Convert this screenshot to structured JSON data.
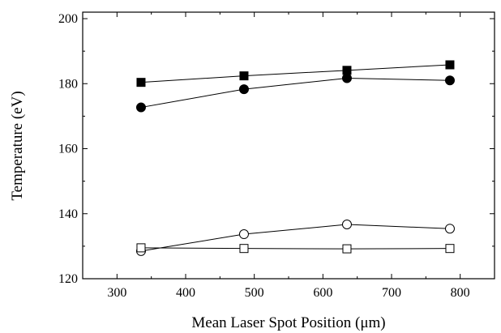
{
  "chart_data": {
    "type": "line",
    "title": "",
    "xlabel": "Mean Laser Spot Position (μm)",
    "ylabel": "Temperature (eV)",
    "xlim": [
      250,
      850
    ],
    "ylim": [
      120,
      202
    ],
    "x_ticks": [
      300,
      400,
      500,
      600,
      700,
      800
    ],
    "y_ticks": [
      120,
      140,
      160,
      180,
      200
    ],
    "grid": false,
    "legend": "none",
    "x": [
      335,
      485,
      635,
      785
    ],
    "series": [
      {
        "marker": "square",
        "fill": "filled",
        "values": [
          180.4,
          182.4,
          184.1,
          185.8
        ]
      },
      {
        "marker": "circle",
        "fill": "filled",
        "values": [
          172.7,
          178.3,
          181.7,
          181.0
        ]
      },
      {
        "marker": "circle",
        "fill": "open",
        "values": [
          128.5,
          133.7,
          136.7,
          135.4
        ]
      },
      {
        "marker": "square",
        "fill": "open",
        "values": [
          129.5,
          129.3,
          129.2,
          129.3
        ]
      }
    ]
  }
}
